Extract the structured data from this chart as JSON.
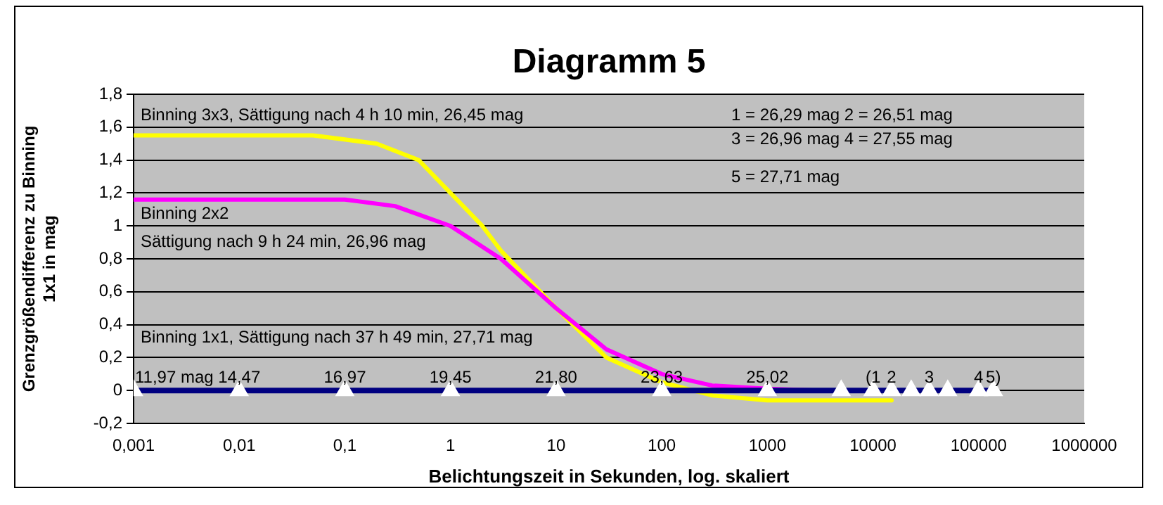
{
  "chart_data": {
    "type": "line",
    "title": "Diagramm 5",
    "xlabel": "Belichtungszeit in Sekunden, log. skaliert",
    "ylabel": "Grenzgrößendifferenz zu Binning 1x1 in mag",
    "log": "x",
    "grid": "y",
    "legend": false,
    "xlim": [
      0.001,
      1000000
    ],
    "xticks": [
      {
        "value": 0.001,
        "label": "0,001"
      },
      {
        "value": 0.01,
        "label": "0,01"
      },
      {
        "value": 0.1,
        "label": "0,1"
      },
      1,
      10,
      100,
      1000,
      10000,
      100000,
      1000000
    ],
    "ylim": [
      -0.2,
      1.8
    ],
    "yticks": [
      {
        "value": -0.2,
        "label": "-0,2"
      },
      0,
      {
        "value": 0.2,
        "label": "0,2"
      },
      {
        "value": 0.4,
        "label": "0,4"
      },
      {
        "value": 0.6,
        "label": "0,6"
      },
      {
        "value": 0.8,
        "label": "0,8"
      },
      1,
      {
        "value": 1.2,
        "label": "1,2"
      },
      {
        "value": 1.4,
        "label": "1,4"
      },
      {
        "value": 1.6,
        "label": "1,6"
      },
      {
        "value": 1.8,
        "label": "1,8"
      }
    ],
    "series": [
      {
        "color": "#000080",
        "marker": "triangle",
        "x": [
          0.001,
          0.01,
          0.1,
          1,
          10,
          100,
          1000,
          5000,
          10000,
          15000,
          23000,
          34000,
          51000,
          100000,
          138000
        ],
        "values": [
          0,
          0,
          0,
          0,
          0,
          0,
          0,
          0,
          0,
          0,
          0,
          0,
          0,
          0,
          0
        ]
      },
      {
        "color": "#ff00ff",
        "x": [
          0.001,
          0.01,
          0.1,
          0.3,
          1,
          3,
          10,
          30,
          100,
          300,
          1000,
          3000,
          30000
        ],
        "values": [
          1.16,
          1.16,
          1.16,
          1.12,
          1.0,
          0.8,
          0.5,
          0.25,
          0.1,
          0.03,
          0.01,
          0,
          0
        ]
      },
      {
        "color": "#ffff00",
        "x": [
          0.001,
          0.01,
          0.05,
          0.2,
          0.5,
          1,
          2,
          3,
          10,
          30,
          100,
          300,
          1000,
          15000
        ],
        "values": [
          1.55,
          1.55,
          1.55,
          1.5,
          1.4,
          1.2,
          1.0,
          0.85,
          0.5,
          0.2,
          0.05,
          -0.03,
          -0.06,
          -0.06
        ]
      }
    ],
    "annotations": [
      "Binning 3x3, Sättigung nach 4 h 10 min, 26,45 mag",
      "Binning 2x2",
      "Sättigung nach 9 h 24 min, 26,96 mag",
      "Binning 1x1, Sättigung nach 37 h 49 min, 27,71 mag",
      "1 = 26,29 mag 2 = 26,51 mag",
      "3 = 26,96 mag 4 = 27,55 mag",
      "5 = 27,71 mag",
      {
        "text": "11,97 mag",
        "x": 0.001,
        "y": 0
      },
      {
        "text": "14,47",
        "x": 0.01,
        "y": 0
      },
      {
        "text": "16,97",
        "x": 0.1,
        "y": 0
      },
      {
        "text": "19,45",
        "x": 1,
        "y": 0
      },
      {
        "text": "21,80",
        "x": 10,
        "y": 0
      },
      {
        "text": "23,63",
        "x": 100,
        "y": 0
      },
      {
        "text": "25,02",
        "x": 1000,
        "y": 0
      },
      {
        "text": "(1",
        "x": 10000,
        "y": 0
      },
      {
        "text": "2",
        "x": 15000,
        "y": 0
      },
      {
        "text": "3",
        "x": 34000,
        "y": 0
      },
      {
        "text": "4",
        "x": 100000,
        "y": 0
      },
      {
        "text": "5)",
        "x": 138000,
        "y": 0
      }
    ]
  }
}
